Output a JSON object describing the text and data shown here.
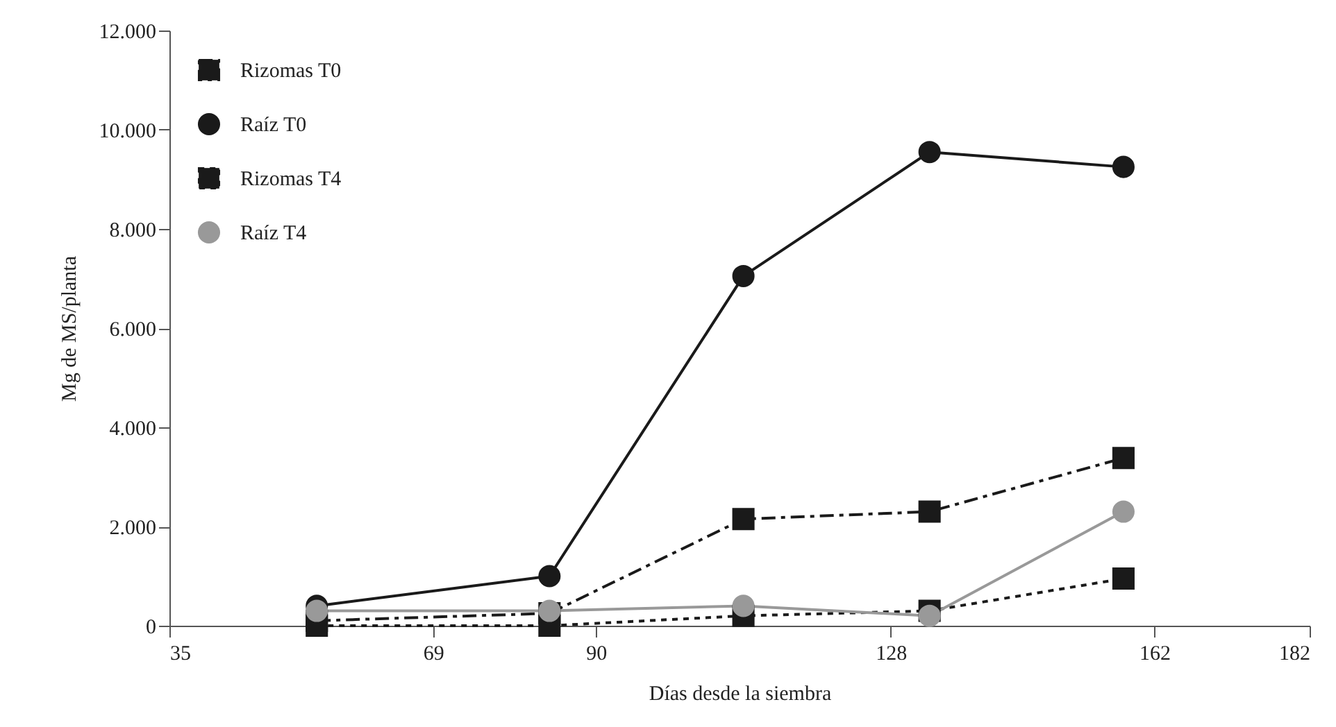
{
  "chart_data": {
    "type": "line",
    "xlabel": "Días desde la siembra",
    "ylabel": "Mg de MS/planta",
    "x": [
      54,
      84,
      109,
      133,
      158
    ],
    "series": [
      {
        "name": "Rizomas T0",
        "color": "#1a1a1a",
        "marker": "square",
        "line_style": "dashed",
        "values": [
          100,
          250,
          2150,
          2300,
          3380
        ]
      },
      {
        "name": "Raíz T0",
        "color": "#1a1a1a",
        "marker": "circle",
        "line_style": "solid",
        "values": [
          400,
          1000,
          7050,
          9550,
          9250
        ]
      },
      {
        "name": "Rizomas T4",
        "color": "#1a1a1a",
        "marker": "square",
        "line_style": "dotted",
        "values": [
          0,
          0,
          200,
          300,
          950
        ]
      },
      {
        "name": "Raíz T4",
        "color": "#999999",
        "marker": "circle",
        "line_style": "solid",
        "values": [
          300,
          300,
          400,
          200,
          2300
        ]
      }
    ],
    "xlim": [
      35,
      182
    ],
    "xticks": [
      35,
      69,
      90,
      128,
      162,
      182
    ],
    "ylim": [
      0,
      12000
    ],
    "yticks": [
      {
        "value": 0,
        "label": "0"
      },
      {
        "value": 2000,
        "label": "2.000"
      },
      {
        "value": 4000,
        "label": "4.000"
      },
      {
        "value": 6000,
        "label": "6.000"
      },
      {
        "value": 8000,
        "label": "8.000"
      },
      {
        "value": 10000,
        "label": "10.000"
      },
      {
        "value": 12000,
        "label": "12.000"
      }
    ],
    "grid": false,
    "legend": "top left"
  }
}
